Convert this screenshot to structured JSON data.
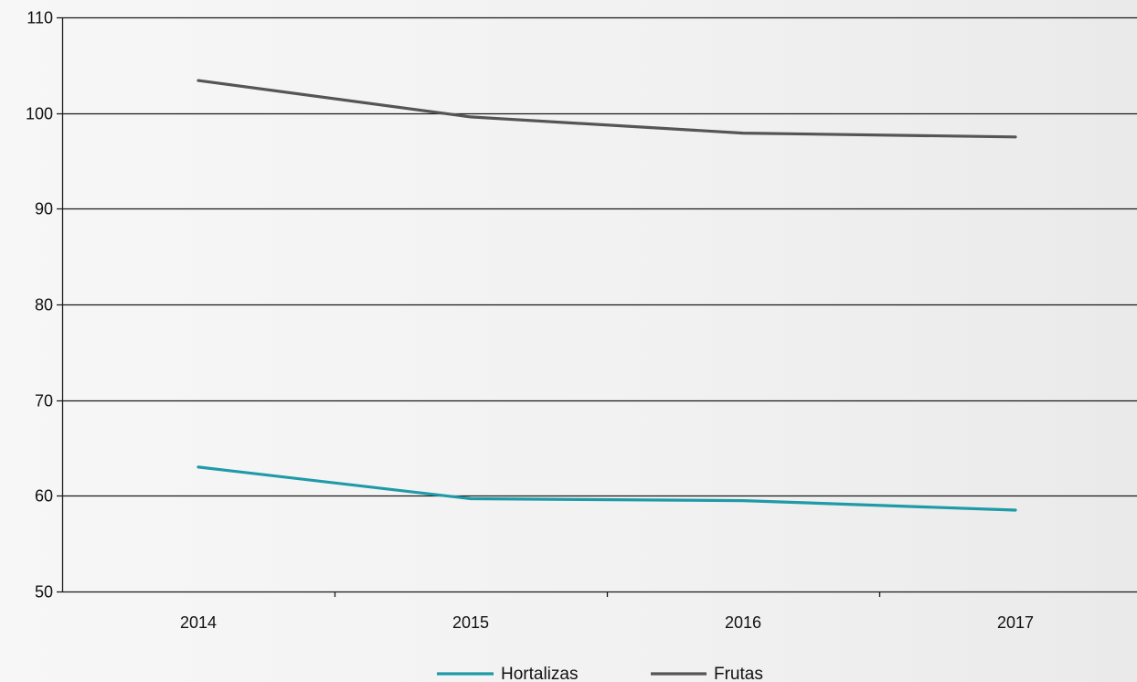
{
  "chart_data": {
    "type": "line",
    "title": "",
    "xlabel": "",
    "ylabel": "",
    "categories": [
      "2014",
      "2015",
      "2016",
      "2017"
    ],
    "ylim": [
      50,
      110
    ],
    "yticks": [
      "50",
      "60",
      "70",
      "80",
      "90",
      "100",
      "110"
    ],
    "grid": "horizontal",
    "legend_position": "bottom-center",
    "series": [
      {
        "name": "Hortalizas",
        "color": "#1e9aa8",
        "values": [
          63.0,
          59.7,
          59.5,
          58.5
        ]
      },
      {
        "name": "Frutas",
        "color": "#555555",
        "values": [
          103.4,
          99.6,
          97.9,
          97.5
        ]
      }
    ]
  }
}
